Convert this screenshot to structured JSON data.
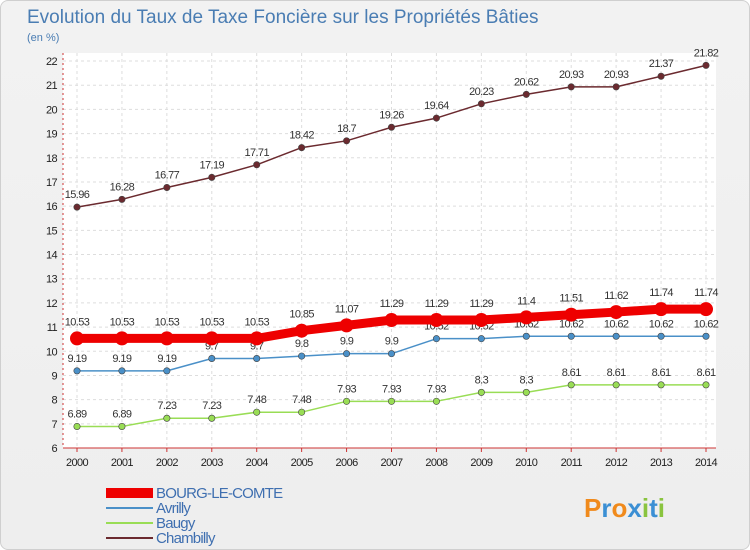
{
  "chart_data": {
    "type": "line",
    "title": "Evolution du Taux de Taxe Foncière sur les Propriétés Bâties",
    "ylabel": "(en %)",
    "xlabel": "",
    "ylim": [
      6,
      22
    ],
    "yticks": [
      6,
      7,
      8,
      9,
      10,
      11,
      12,
      13,
      14,
      15,
      16,
      17,
      18,
      19,
      20,
      21,
      22
    ],
    "x": [
      "2000",
      "2001",
      "2002",
      "2003",
      "2004",
      "2005",
      "2006",
      "2007",
      "2008",
      "2009",
      "2010",
      "2011",
      "2012",
      "2013",
      "2014"
    ],
    "series": [
      {
        "name": "BOURG-LE-COMTE",
        "color": "#ee0000",
        "values": [
          10.53,
          10.53,
          10.53,
          10.53,
          10.53,
          10.85,
          11.07,
          11.29,
          11.29,
          11.29,
          11.4,
          11.51,
          11.62,
          11.74,
          11.74
        ],
        "labels": [
          "10.53",
          "10.53",
          "10.53",
          "10.53",
          "10.53",
          "10.85",
          "11.07",
          "11.29",
          "11.29",
          "11.29",
          "11.4",
          "11.51",
          "11.62",
          "11.74",
          "11.74"
        ]
      },
      {
        "name": "Avrilly",
        "color": "#4a90c8",
        "values": [
          9.19,
          9.19,
          9.19,
          9.7,
          9.7,
          9.8,
          9.9,
          9.9,
          10.52,
          10.52,
          10.62,
          10.62,
          10.62,
          10.62,
          10.62
        ],
        "labels": [
          "9.19",
          "9.19",
          "9.19",
          "9.7",
          "9.7",
          "9.8",
          "9.9",
          "9.9",
          "10.52",
          "10.52",
          "10.62",
          "10.62",
          "10.62",
          "10.62",
          "10.62"
        ]
      },
      {
        "name": "Baugy",
        "color": "#99dd55",
        "values": [
          6.89,
          6.89,
          7.23,
          7.23,
          7.48,
          7.48,
          7.93,
          7.93,
          7.93,
          8.3,
          8.3,
          8.61,
          8.61,
          8.61,
          8.61
        ],
        "labels": [
          "6.89",
          "6.89",
          "7.23",
          "7.23",
          "7.48",
          "7.48",
          "7.93",
          "7.93",
          "7.93",
          "8.3",
          "8.3",
          "8.61",
          "8.61",
          "8.61",
          "8.61"
        ]
      },
      {
        "name": "Chambilly",
        "color": "#6b2a2f",
        "values": [
          15.96,
          16.28,
          16.77,
          17.19,
          17.71,
          18.42,
          18.7,
          19.26,
          19.64,
          20.23,
          20.62,
          20.93,
          20.93,
          21.37,
          21.82
        ],
        "labels": [
          "15.96",
          "16.28",
          "16.77",
          "17.19",
          "17.71",
          "18.42",
          "18.7",
          "19.26",
          "19.64",
          "20.23",
          "20.62",
          "20.93",
          "20.93",
          "21.37",
          "21.82"
        ]
      }
    ],
    "legend_position": "bottom-left",
    "grid": true
  },
  "logo": {
    "letters": [
      "P",
      "r",
      "o",
      "x",
      "i",
      "t",
      "i"
    ],
    "colors": [
      "#f08a1c",
      "#3b8fd4",
      "#f08a1c",
      "#3b8fd4",
      "#8ac43f",
      "#3b8fd4",
      "#8ac43f"
    ]
  }
}
